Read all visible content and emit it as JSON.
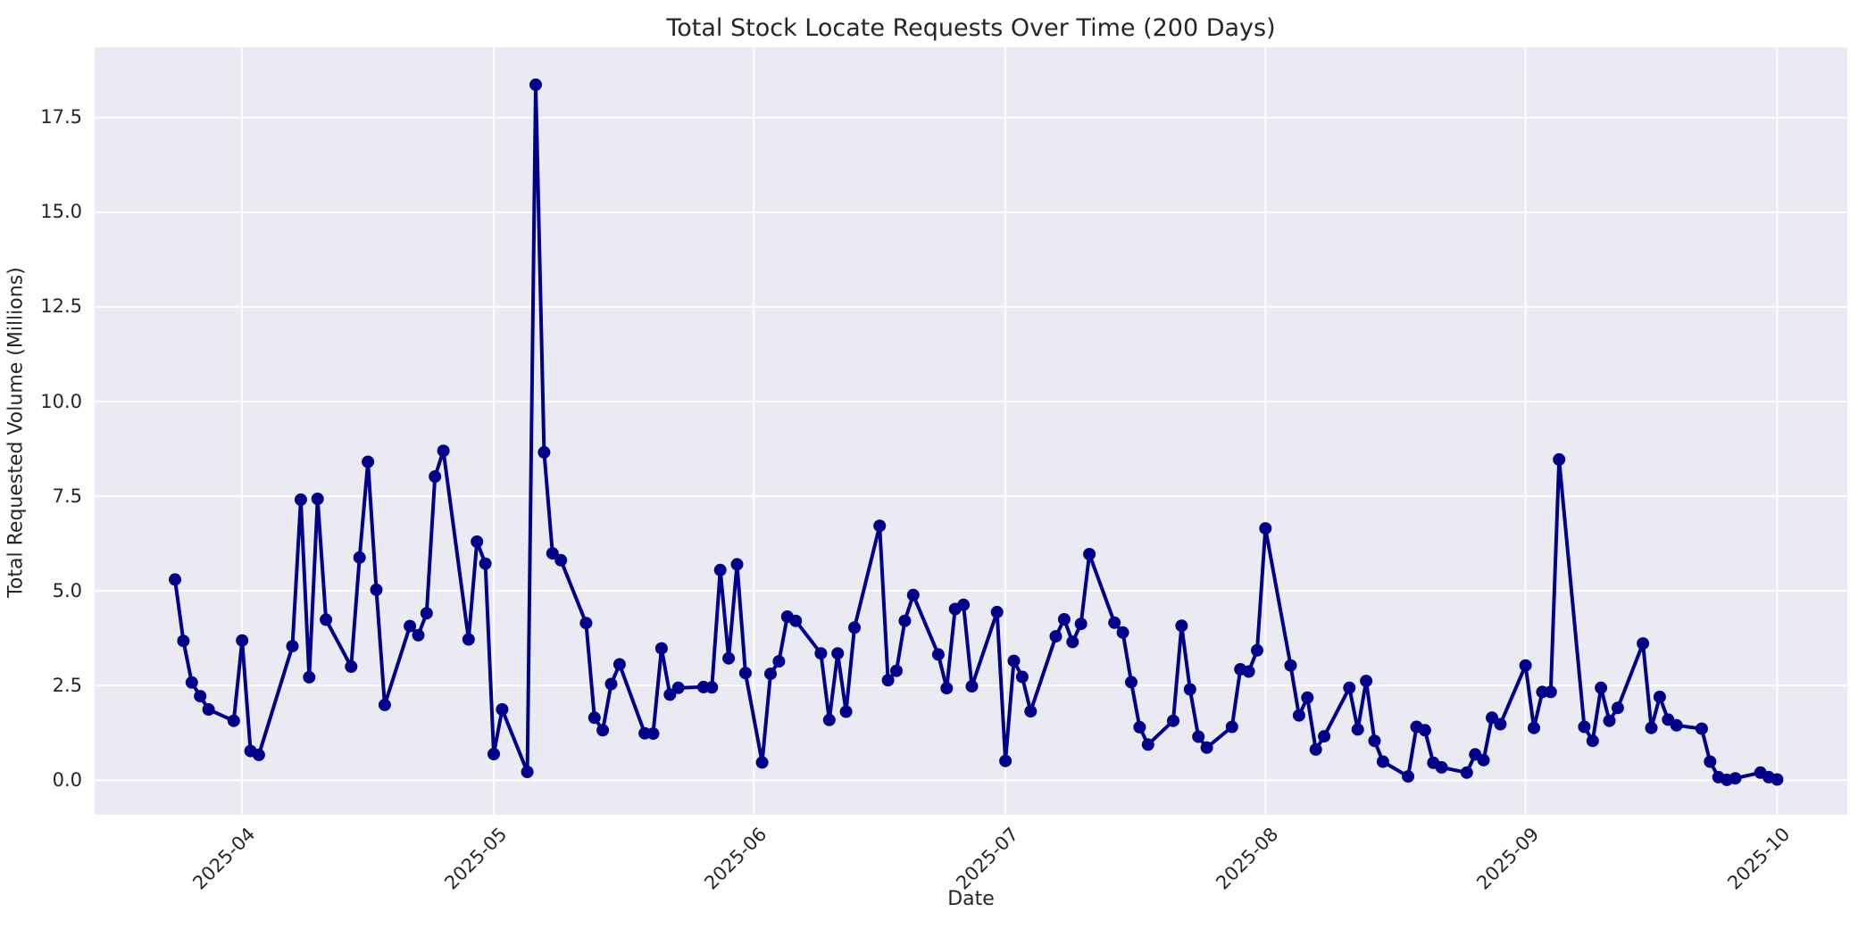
{
  "title": "Total Stock Locate Requests Over Time (200 Days)",
  "chart_data": {
    "type": "line",
    "title": "Total Stock Locate Requests Over Time (200 Days)",
    "xlabel": "Date",
    "ylabel": "Total Requested Volume (Millions)",
    "series_name": "total-stock-locate-requests",
    "legend": false,
    "grid": true,
    "marker": "o",
    "line_color": "#00008B",
    "marker_color": "#00008B",
    "axes_background": "#EAEAF2",
    "grid_color": "#FFFFFF",
    "figure_background": "#FFFFFF",
    "text_color": "#262626",
    "y_ticks": [
      0.0,
      2.5,
      5.0,
      7.5,
      10.0,
      12.5,
      15.0,
      17.5
    ],
    "ylim": [
      -0.91,
      19.36
    ],
    "x_tick_dates": [
      "2025-04-01",
      "2025-05-01",
      "2025-06-01",
      "2025-07-01",
      "2025-08-01",
      "2025-09-01",
      "2025-10-01"
    ],
    "x_tick_labels": [
      "2025-04",
      "2025-05",
      "2025-06",
      "2025-07",
      "2025-08",
      "2025-09",
      "2025-10"
    ],
    "points": [
      [
        "2025-03-24",
        5.3
      ],
      [
        "2025-03-25",
        3.68
      ],
      [
        "2025-03-26",
        2.58
      ],
      [
        "2025-03-27",
        2.22
      ],
      [
        "2025-03-28",
        1.87
      ],
      [
        "2025-03-31",
        1.57
      ],
      [
        "2025-04-01",
        3.69
      ],
      [
        "2025-04-02",
        0.77
      ],
      [
        "2025-04-03",
        0.67
      ],
      [
        "2025-04-07",
        3.54
      ],
      [
        "2025-04-08",
        7.41
      ],
      [
        "2025-04-09",
        2.72
      ],
      [
        "2025-04-10",
        7.43
      ],
      [
        "2025-04-11",
        4.24
      ],
      [
        "2025-04-14",
        3.0
      ],
      [
        "2025-04-15",
        5.88
      ],
      [
        "2025-04-16",
        8.41
      ],
      [
        "2025-04-17",
        5.03
      ],
      [
        "2025-04-18",
        1.99
      ],
      [
        "2025-04-21",
        4.07
      ],
      [
        "2025-04-22",
        3.83
      ],
      [
        "2025-04-23",
        4.41
      ],
      [
        "2025-04-24",
        8.02
      ],
      [
        "2025-04-25",
        8.7
      ],
      [
        "2025-04-28",
        3.72
      ],
      [
        "2025-04-29",
        6.3
      ],
      [
        "2025-04-30",
        5.72
      ],
      [
        "2025-05-01",
        0.69
      ],
      [
        "2025-05-02",
        1.87
      ],
      [
        "2025-05-05",
        0.22
      ],
      [
        "2025-05-06",
        18.37
      ],
      [
        "2025-05-07",
        8.66
      ],
      [
        "2025-05-08",
        5.99
      ],
      [
        "2025-05-09",
        5.81
      ],
      [
        "2025-05-12",
        4.15
      ],
      [
        "2025-05-13",
        1.65
      ],
      [
        "2025-05-14",
        1.32
      ],
      [
        "2025-05-15",
        2.54
      ],
      [
        "2025-05-16",
        3.06
      ],
      [
        "2025-05-19",
        1.24
      ],
      [
        "2025-05-20",
        1.23
      ],
      [
        "2025-05-21",
        3.48
      ],
      [
        "2025-05-22",
        2.26
      ],
      [
        "2025-05-23",
        2.44
      ],
      [
        "2025-05-26",
        2.46
      ],
      [
        "2025-05-27",
        2.45
      ],
      [
        "2025-05-28",
        5.55
      ],
      [
        "2025-05-29",
        3.22
      ],
      [
        "2025-05-30",
        5.7
      ],
      [
        "2025-05-31",
        2.83
      ],
      [
        "2025-06-02",
        0.47
      ],
      [
        "2025-06-03",
        2.81
      ],
      [
        "2025-06-04",
        3.14
      ],
      [
        "2025-06-05",
        4.32
      ],
      [
        "2025-06-06",
        4.21
      ],
      [
        "2025-06-09",
        3.35
      ],
      [
        "2025-06-10",
        1.59
      ],
      [
        "2025-06-11",
        3.35
      ],
      [
        "2025-06-12",
        1.81
      ],
      [
        "2025-06-13",
        4.03
      ],
      [
        "2025-06-16",
        6.72
      ],
      [
        "2025-06-17",
        2.64
      ],
      [
        "2025-06-18",
        2.89
      ],
      [
        "2025-06-19",
        4.21
      ],
      [
        "2025-06-20",
        4.89
      ],
      [
        "2025-06-23",
        3.32
      ],
      [
        "2025-06-24",
        2.43
      ],
      [
        "2025-06-25",
        4.52
      ],
      [
        "2025-06-26",
        4.63
      ],
      [
        "2025-06-27",
        2.48
      ],
      [
        "2025-06-30",
        4.44
      ],
      [
        "2025-07-01",
        0.51
      ],
      [
        "2025-07-02",
        3.15
      ],
      [
        "2025-07-03",
        2.73
      ],
      [
        "2025-07-04",
        1.82
      ],
      [
        "2025-07-07",
        3.8
      ],
      [
        "2025-07-08",
        4.25
      ],
      [
        "2025-07-09",
        3.65
      ],
      [
        "2025-07-10",
        4.13
      ],
      [
        "2025-07-11",
        5.97
      ],
      [
        "2025-07-14",
        4.16
      ],
      [
        "2025-07-15",
        3.9
      ],
      [
        "2025-07-16",
        2.59
      ],
      [
        "2025-07-17",
        1.4
      ],
      [
        "2025-07-18",
        0.94
      ],
      [
        "2025-07-21",
        1.57
      ],
      [
        "2025-07-22",
        4.08
      ],
      [
        "2025-07-23",
        2.4
      ],
      [
        "2025-07-24",
        1.15
      ],
      [
        "2025-07-25",
        0.86
      ],
      [
        "2025-07-28",
        1.41
      ],
      [
        "2025-07-29",
        2.93
      ],
      [
        "2025-07-30",
        2.87
      ],
      [
        "2025-07-31",
        3.43
      ],
      [
        "2025-08-01",
        6.65
      ],
      [
        "2025-08-04",
        3.03
      ],
      [
        "2025-08-05",
        1.71
      ],
      [
        "2025-08-06",
        2.18
      ],
      [
        "2025-08-07",
        0.81
      ],
      [
        "2025-08-08",
        1.16
      ],
      [
        "2025-08-11",
        2.44
      ],
      [
        "2025-08-12",
        1.34
      ],
      [
        "2025-08-13",
        2.62
      ],
      [
        "2025-08-14",
        1.04
      ],
      [
        "2025-08-15",
        0.49
      ],
      [
        "2025-08-18",
        0.1
      ],
      [
        "2025-08-19",
        1.41
      ],
      [
        "2025-08-20",
        1.32
      ],
      [
        "2025-08-21",
        0.46
      ],
      [
        "2025-08-22",
        0.34
      ],
      [
        "2025-08-25",
        0.2
      ],
      [
        "2025-08-26",
        0.68
      ],
      [
        "2025-08-27",
        0.53
      ],
      [
        "2025-08-28",
        1.65
      ],
      [
        "2025-08-29",
        1.48
      ],
      [
        "2025-09-01",
        3.03
      ],
      [
        "2025-09-02",
        1.38
      ],
      [
        "2025-09-03",
        2.33
      ],
      [
        "2025-09-04",
        2.33
      ],
      [
        "2025-09-05",
        8.47
      ],
      [
        "2025-09-08",
        1.41
      ],
      [
        "2025-09-09",
        1.04
      ],
      [
        "2025-09-10",
        2.44
      ],
      [
        "2025-09-11",
        1.57
      ],
      [
        "2025-09-12",
        1.91
      ],
      [
        "2025-09-15",
        3.61
      ],
      [
        "2025-09-16",
        1.38
      ],
      [
        "2025-09-17",
        2.2
      ],
      [
        "2025-09-18",
        1.6
      ],
      [
        "2025-09-19",
        1.45
      ],
      [
        "2025-09-22",
        1.36
      ],
      [
        "2025-09-23",
        0.49
      ],
      [
        "2025-09-24",
        0.08
      ],
      [
        "2025-09-25",
        0.01
      ],
      [
        "2025-09-26",
        0.05
      ],
      [
        "2025-09-29",
        0.2
      ],
      [
        "2025-09-30",
        0.08
      ],
      [
        "2025-10-01",
        0.02
      ]
    ]
  }
}
